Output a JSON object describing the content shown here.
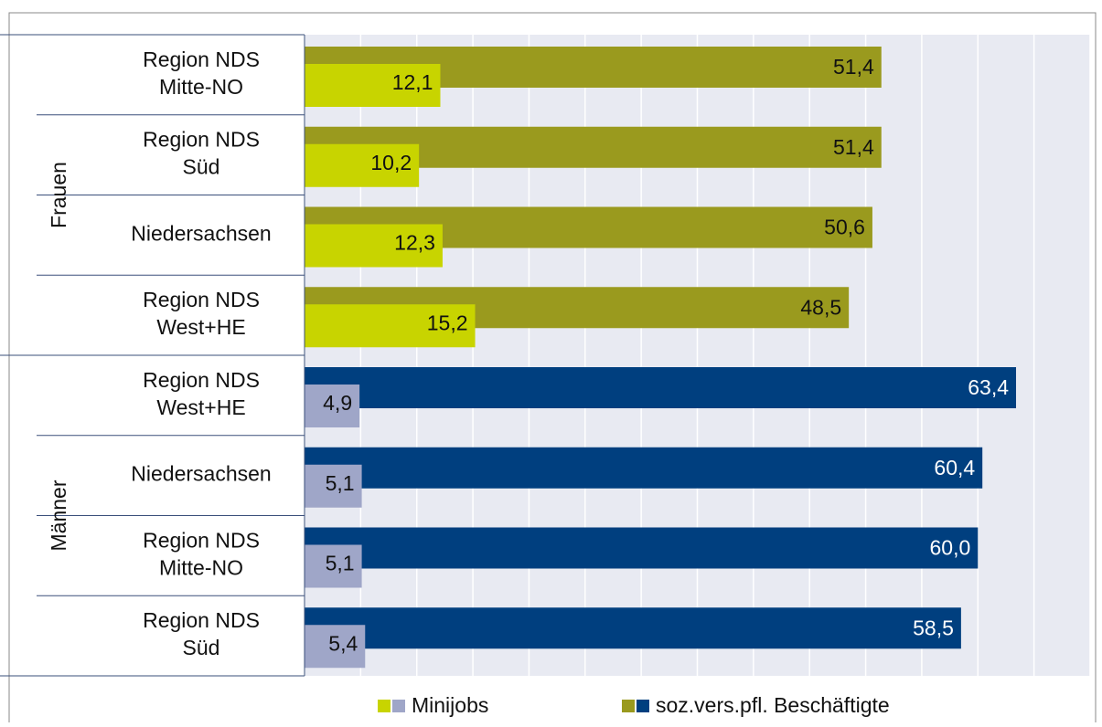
{
  "chart_data": {
    "type": "bar",
    "groups": [
      {
        "name": "Frauen",
        "categories": [
          "Region NDS\nMitte-NO",
          "Region NDS\nSüd",
          "Niedersachsen",
          "Region NDS\nWest+HE"
        ]
      },
      {
        "name": "Männer",
        "categories": [
          "Region NDS\nWest+HE",
          "Niedersachsen",
          "Region NDS\nMitte-NO",
          "Region NDS\nSüd"
        ]
      }
    ],
    "series": [
      {
        "name": "Minijobs",
        "colors": [
          "#c8d400",
          "#9fa6c8"
        ],
        "values": [
          12.1,
          10.2,
          12.3,
          15.2,
          4.9,
          5.1,
          5.1,
          5.4
        ],
        "value_labels": [
          "12,1",
          "10,2",
          "12,3",
          "15,2",
          "4,9",
          "5,1",
          "5,1",
          "5,4"
        ]
      },
      {
        "name": "soz.vers.pfl. Beschäftigte",
        "colors": [
          "#9a9a1e",
          "#003f7f"
        ],
        "values": [
          51.4,
          51.4,
          50.6,
          48.5,
          63.4,
          60.4,
          60.0,
          58.5
        ],
        "value_labels": [
          "51,4",
          "51,4",
          "50,6",
          "48,5",
          "63,4",
          "60,4",
          "60,0",
          "58,5"
        ]
      }
    ],
    "xlim": [
      0,
      70
    ],
    "xticks": [
      0,
      5,
      10,
      15,
      20,
      25,
      30,
      35,
      40,
      45,
      50,
      55,
      60,
      65,
      70
    ],
    "grid": true
  }
}
